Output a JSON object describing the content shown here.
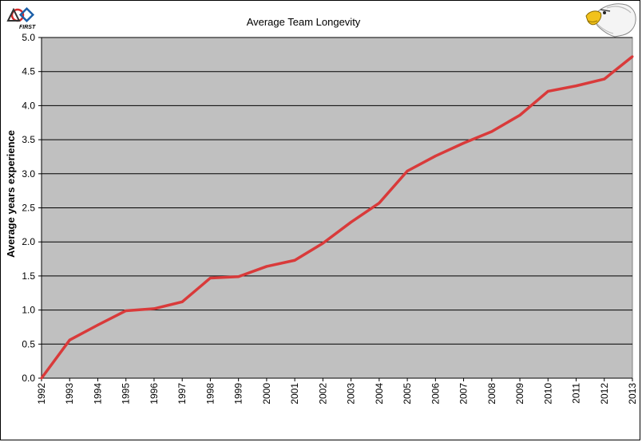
{
  "chart_data": {
    "type": "line",
    "title": "Average Team Longevity",
    "xlabel": "",
    "ylabel": "Average years experience",
    "x": [
      "1992",
      "1993",
      "1994",
      "1995",
      "1996",
      "1997",
      "1998",
      "1999",
      "2000",
      "2001",
      "2002",
      "2003",
      "2004",
      "2005",
      "2006",
      "2007",
      "2008",
      "2009",
      "2010",
      "2011",
      "2012",
      "2013"
    ],
    "series": [
      {
        "values": [
          0.0,
          0.56,
          0.78,
          0.99,
          1.02,
          1.12,
          1.47,
          1.49,
          1.64,
          1.73,
          1.98,
          2.29,
          2.57,
          3.04,
          3.26,
          3.45,
          3.62,
          3.86,
          4.21,
          4.29,
          4.39,
          4.72
        ],
        "color": "#d93a3a"
      }
    ],
    "ylim": [
      0,
      5.0
    ],
    "yticks": [
      "0.0",
      "0.5",
      "1.0",
      "1.5",
      "2.0",
      "2.5",
      "3.0",
      "3.5",
      "4.0",
      "4.5",
      "5.0"
    ],
    "grid": true,
    "plot_background": "#c0c0c0",
    "legend": "none"
  },
  "logos": {
    "first_logo_text": "FIRST",
    "first_logo_icon": "first-robotics-logo",
    "mascot_icon": "eagle-head-logo"
  }
}
